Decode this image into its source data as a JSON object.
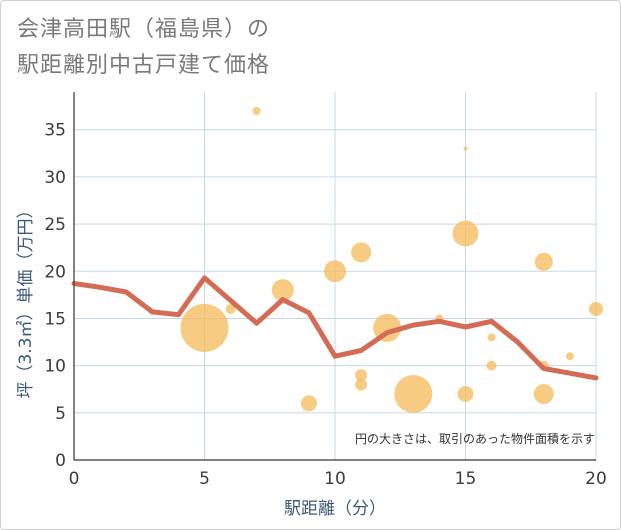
{
  "title_line1": "会津高田駅（福島県）の",
  "title_line2": "駅距離別中古戸建て価格",
  "chart_data": {
    "type": "scatter",
    "title": "会津高田駅（福島県）の駅距離別中古戸建て価格",
    "xlabel": "駅距離（分）",
    "ylabel": "坪（3.3㎡）単価（万円）",
    "xlim": [
      0,
      20
    ],
    "ylim": [
      0,
      39
    ],
    "xticks": [
      0,
      5,
      10,
      15,
      20
    ],
    "yticks": [
      0,
      5,
      10,
      15,
      20,
      25,
      30,
      35
    ],
    "note": "円の大きさは、取引のあった物件面積を示す",
    "bubble_color": "#f5b95a",
    "line_color": "#d46b55",
    "bubbles": [
      {
        "x": 5,
        "y": 14,
        "size": 24
      },
      {
        "x": 6,
        "y": 16,
        "size": 5
      },
      {
        "x": 7,
        "y": 37,
        "size": 4
      },
      {
        "x": 8,
        "y": 18,
        "size": 11
      },
      {
        "x": 9,
        "y": 6,
        "size": 8
      },
      {
        "x": 10,
        "y": 20,
        "size": 11
      },
      {
        "x": 11,
        "y": 22,
        "size": 10
      },
      {
        "x": 11,
        "y": 9,
        "size": 6
      },
      {
        "x": 11,
        "y": 8,
        "size": 6
      },
      {
        "x": 12,
        "y": 14,
        "size": 14
      },
      {
        "x": 13,
        "y": 7,
        "size": 19
      },
      {
        "x": 14,
        "y": 15,
        "size": 4
      },
      {
        "x": 15,
        "y": 33,
        "size": 2
      },
      {
        "x": 15,
        "y": 24,
        "size": 13
      },
      {
        "x": 15,
        "y": 7,
        "size": 8
      },
      {
        "x": 16,
        "y": 13,
        "size": 4
      },
      {
        "x": 16,
        "y": 10,
        "size": 5
      },
      {
        "x": 18,
        "y": 21,
        "size": 9
      },
      {
        "x": 18,
        "y": 10,
        "size": 5
      },
      {
        "x": 18,
        "y": 7,
        "size": 10
      },
      {
        "x": 19,
        "y": 11,
        "size": 4
      },
      {
        "x": 20,
        "y": 16,
        "size": 7
      }
    ],
    "trend_line": {
      "x": [
        0,
        1,
        2,
        3,
        4,
        5,
        6,
        7,
        8,
        9,
        10,
        11,
        12,
        13,
        14,
        15,
        16,
        17,
        18,
        19,
        20
      ],
      "y": [
        18.7,
        18.3,
        17.8,
        15.7,
        15.4,
        19.3,
        16.9,
        14.5,
        17.0,
        15.6,
        11.0,
        11.6,
        13.5,
        14.3,
        14.7,
        14.1,
        14.7,
        12.5,
        9.7,
        9.2,
        8.7
      ]
    }
  }
}
